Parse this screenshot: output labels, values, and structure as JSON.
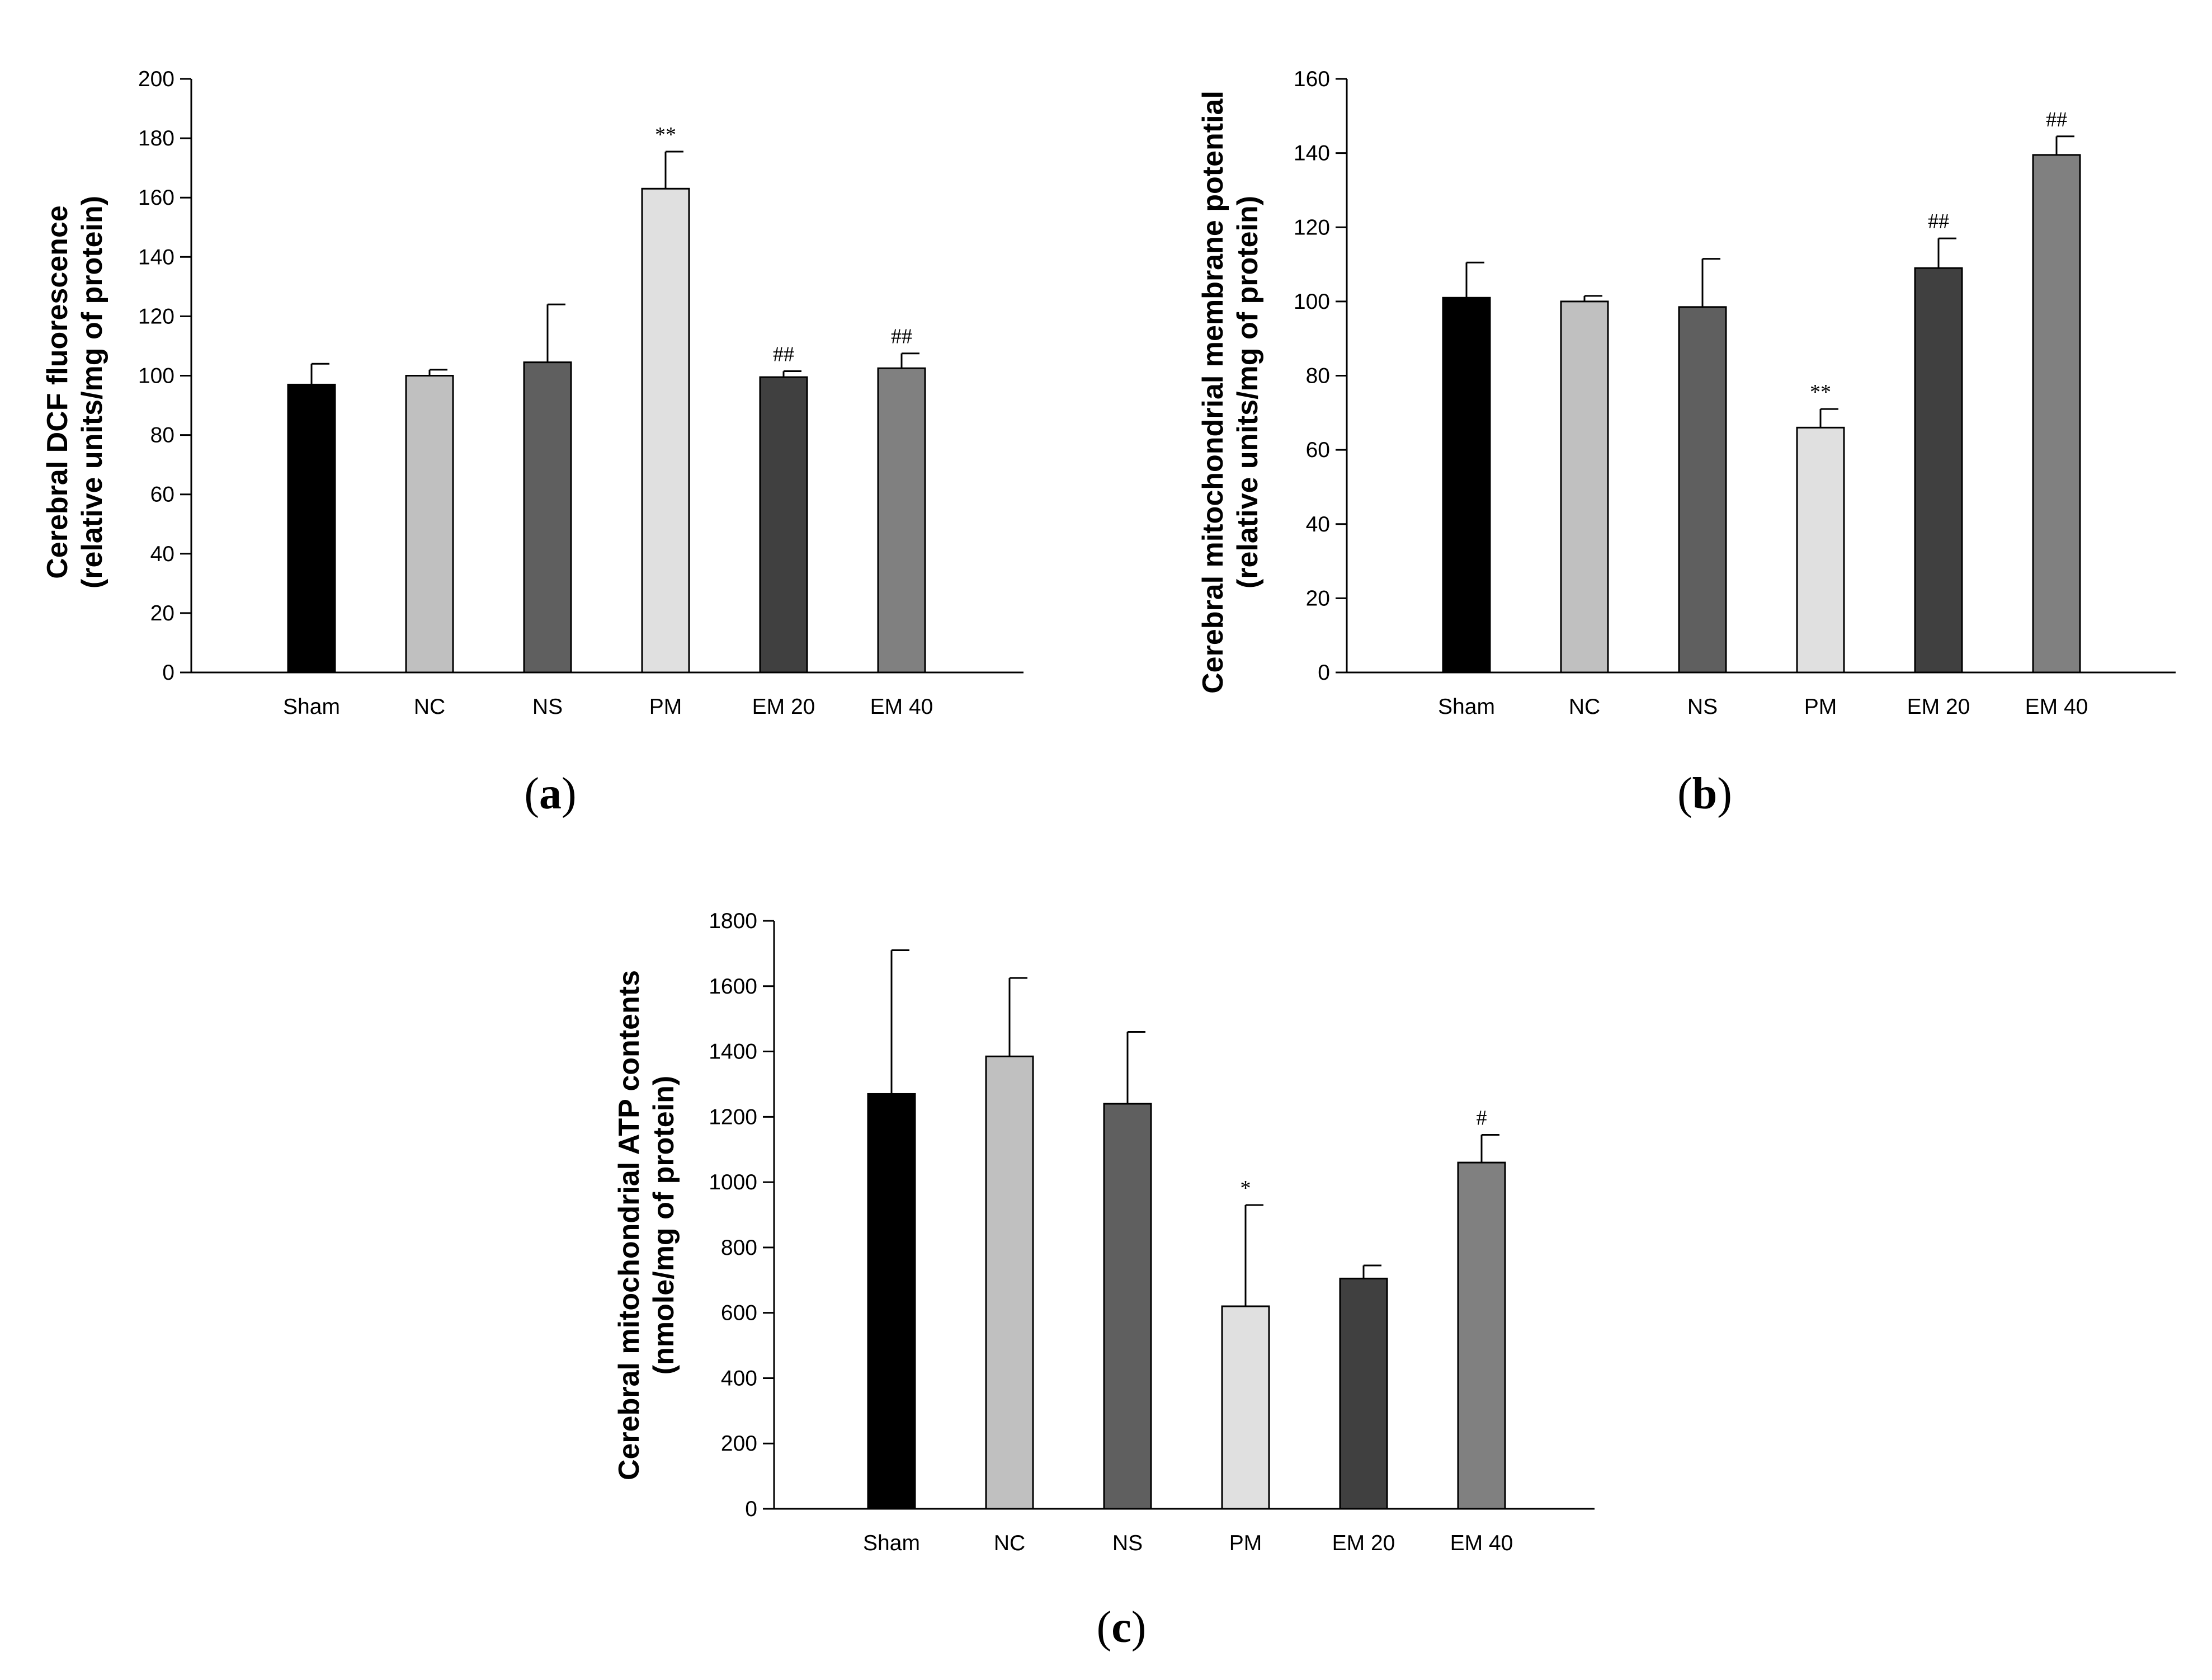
{
  "figure": {
    "colors": {
      "Sham": "#000000",
      "NC": "#c0c0c0",
      "NS": "#5f5f5f",
      "PM": "#e0e0e0",
      "EM 20": "#404040",
      "EM 40": "#808080"
    }
  },
  "chart_data": [
    {
      "panel": "a",
      "type": "bar",
      "categories": [
        "Sham",
        "NC",
        "NS",
        "PM",
        "EM 20",
        "EM 40"
      ],
      "values": [
        97,
        100,
        104.5,
        163,
        99.5,
        102.5
      ],
      "errors": [
        7,
        2,
        19.5,
        12.5,
        2,
        5
      ],
      "annotations": [
        "",
        "",
        "",
        "**",
        "##",
        "##"
      ],
      "ylabel_lines": [
        "Cerebral DCF fluorescence",
        "(relative units/mg of protein)"
      ],
      "ylim": [
        0,
        200
      ],
      "yticks": [
        0,
        20,
        40,
        60,
        80,
        100,
        120,
        140,
        160,
        180,
        200
      ],
      "panel_label": {
        "open": "(",
        "letter": "a",
        "close": ")"
      }
    },
    {
      "panel": "b",
      "type": "bar",
      "categories": [
        "Sham",
        "NC",
        "NS",
        "PM",
        "EM 20",
        "EM 40"
      ],
      "values": [
        101,
        100,
        98.5,
        66,
        109,
        139.5
      ],
      "errors": [
        9.5,
        1.5,
        13,
        5,
        8,
        5
      ],
      "annotations": [
        "",
        "",
        "",
        "**",
        "##",
        "##"
      ],
      "ylabel_lines": [
        "Cerebral mitochondrial membrane potential",
        "(relative units/mg of protein)"
      ],
      "ylim": [
        0,
        160
      ],
      "yticks": [
        0,
        20,
        40,
        60,
        80,
        100,
        120,
        140,
        160
      ],
      "panel_label": {
        "open": "(",
        "letter": "b",
        "close": ")"
      }
    },
    {
      "panel": "c",
      "type": "bar",
      "categories": [
        "Sham",
        "NC",
        "NS",
        "PM",
        "EM 20",
        "EM 40"
      ],
      "values": [
        1270,
        1385,
        1240,
        620,
        705,
        1060
      ],
      "errors": [
        440,
        240,
        220,
        310,
        40,
        85
      ],
      "annotations": [
        "",
        "",
        "",
        "*",
        "",
        "#"
      ],
      "ylabel_lines": [
        "Cerebral mitochondrial ATP contents",
        "(nmole/mg of protein)"
      ],
      "ylim": [
        0,
        1800
      ],
      "yticks": [
        0,
        200,
        400,
        600,
        800,
        1000,
        1200,
        1400,
        1600,
        1800
      ],
      "panel_label": {
        "open": "(",
        "letter": "c",
        "close": ")"
      }
    }
  ]
}
